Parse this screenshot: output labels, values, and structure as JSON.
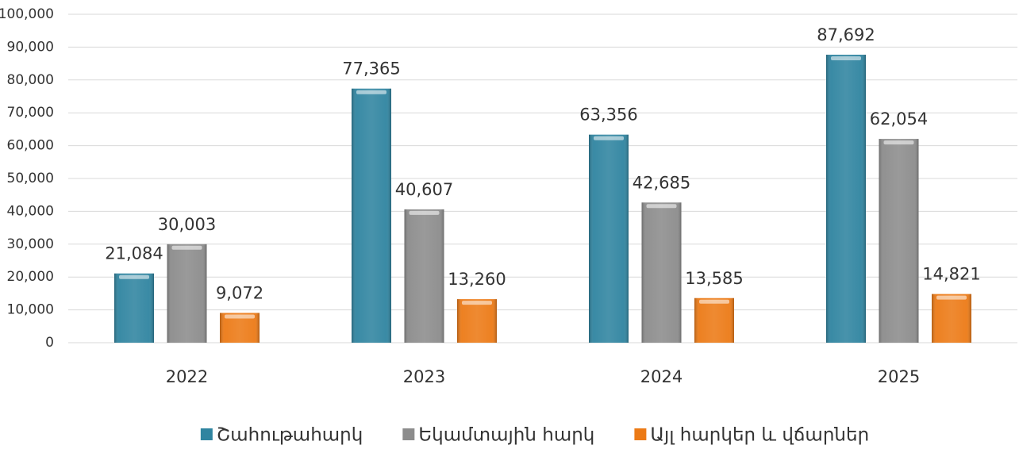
{
  "chart_data": {
    "type": "bar",
    "categories": [
      "2022",
      "2023",
      "2024",
      "2025"
    ],
    "series": [
      {
        "name": "Շահութահարկ",
        "color": "#2f84a0",
        "values": [
          21084,
          77365,
          63356,
          87692
        ],
        "value_labels": [
          "21,084",
          "77,365",
          "63,356",
          "87,692"
        ]
      },
      {
        "name": "Եկամտային հարկ",
        "color": "#8c8c8c",
        "values": [
          30003,
          40607,
          42685,
          62054
        ],
        "value_labels": [
          "30,003",
          "40,607",
          "42,685",
          "62,054"
        ]
      },
      {
        "name": "Այլ հարկեր և վճարներ",
        "color": "#ec7a16",
        "values": [
          9072,
          13260,
          13585,
          14821
        ],
        "value_labels": [
          "9,072",
          "13,260",
          "13,585",
          "14,821"
        ]
      }
    ],
    "ylim": [
      0,
      100000
    ],
    "yticks": [
      0,
      {
        "value": 10000,
        "label": "10,000"
      },
      {
        "value": 20000,
        "label": "20,000"
      },
      {
        "value": 30000,
        "label": "30,000"
      },
      {
        "value": 40000,
        "label": "40,000"
      },
      {
        "value": 50000,
        "label": "50,000"
      },
      {
        "value": 60000,
        "label": "60,000"
      },
      {
        "value": 70000,
        "label": "70,000"
      },
      {
        "value": 80000,
        "label": "80,000"
      },
      {
        "value": 90000,
        "label": "90,000"
      },
      {
        "value": 100000,
        "label": "100,000"
      }
    ],
    "grid": true
  }
}
